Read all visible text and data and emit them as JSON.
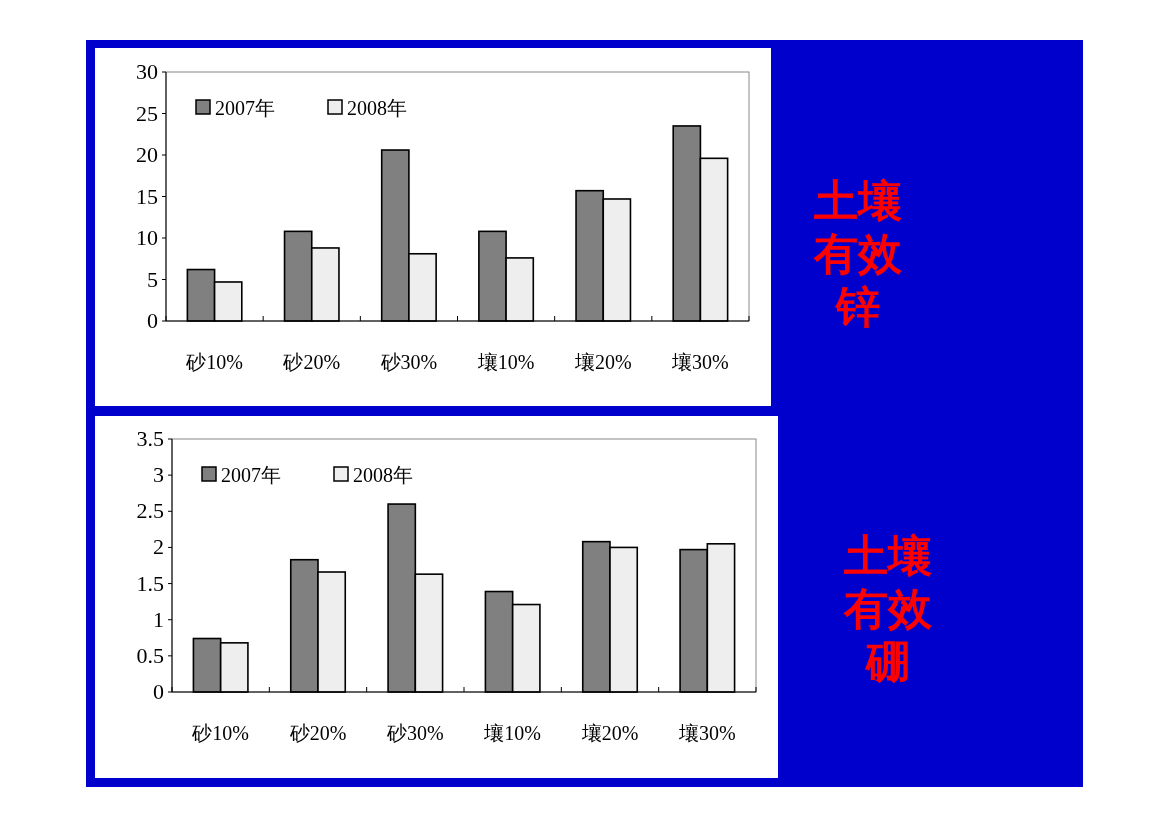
{
  "chart_data": [
    {
      "type": "bar",
      "annotations": [
        "土壤有效锌"
      ],
      "categories": [
        "砂10%",
        "砂20%",
        "砂30%",
        "壤10%",
        "壤20%",
        "壤30%"
      ],
      "series": [
        {
          "name": "2007年",
          "color": "#808080",
          "values": [
            6.2,
            10.8,
            20.6,
            10.8,
            15.7,
            23.5
          ]
        },
        {
          "name": "2008年",
          "color": "#eeeeee",
          "values": [
            4.7,
            8.8,
            8.1,
            7.6,
            14.7,
            19.6
          ]
        }
      ],
      "ylim": [
        0,
        30
      ],
      "yticks": [
        0,
        5,
        10,
        15,
        20,
        25,
        30
      ],
      "legend": "top left",
      "grid": false
    },
    {
      "type": "bar",
      "annotations": [
        "土壤有效硼"
      ],
      "categories": [
        "砂10%",
        "砂20%",
        "砂30%",
        "壤10%",
        "壤20%",
        "壤30%"
      ],
      "series": [
        {
          "name": "2007年",
          "color": "#808080",
          "values": [
            0.74,
            1.83,
            2.6,
            1.39,
            2.08,
            1.97
          ]
        },
        {
          "name": "2008年",
          "color": "#eeeeee",
          "values": [
            0.68,
            1.66,
            1.63,
            1.21,
            2.0,
            2.05
          ]
        }
      ],
      "ylim": [
        0,
        3.5
      ],
      "yticks": [
        0,
        0.5,
        1,
        1.5,
        2,
        2.5,
        3,
        3.5
      ],
      "legend": "top left",
      "grid": false
    }
  ]
}
